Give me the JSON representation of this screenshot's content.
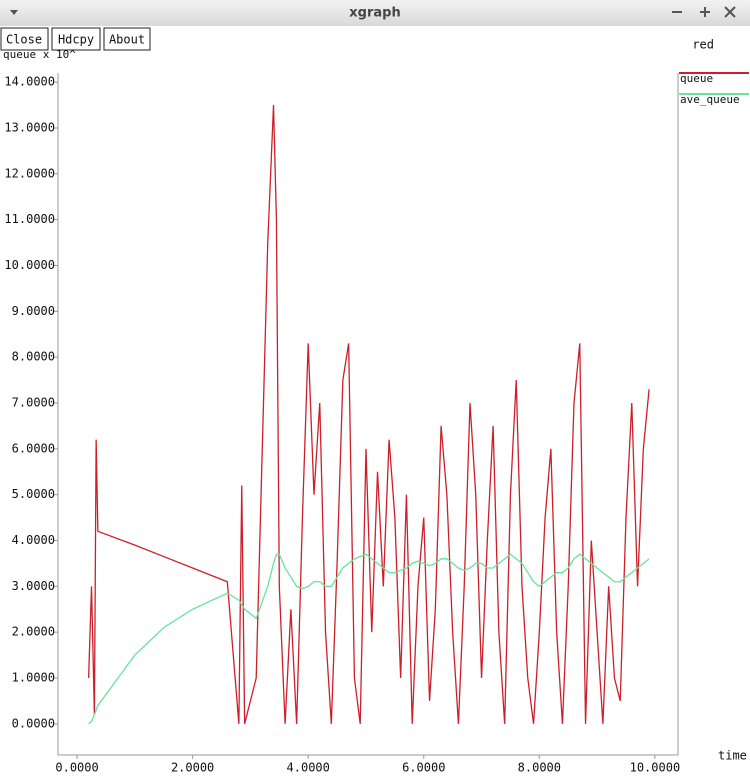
{
  "window": {
    "title": "xgraph",
    "buttons": [
      "Close",
      "Hdcpy",
      "About"
    ],
    "status": "red"
  },
  "chart_data": {
    "type": "line",
    "y_label": "queue x 10^",
    "x_label": "time",
    "x": [
      0.2,
      0.25,
      0.3,
      0.33,
      0.36,
      1.0,
      1.5,
      2.0,
      2.6,
      2.8,
      2.85,
      2.9,
      3.1,
      3.3,
      3.4,
      3.45,
      3.5,
      3.6,
      3.7,
      3.8,
      3.9,
      4.0,
      4.1,
      4.2,
      4.3,
      4.4,
      4.5,
      4.6,
      4.7,
      4.8,
      4.9,
      5.0,
      5.1,
      5.2,
      5.3,
      5.4,
      5.5,
      5.6,
      5.7,
      5.8,
      5.9,
      6.0,
      6.1,
      6.2,
      6.3,
      6.4,
      6.5,
      6.6,
      6.7,
      6.8,
      6.9,
      7.0,
      7.1,
      7.2,
      7.3,
      7.4,
      7.5,
      7.6,
      7.7,
      7.8,
      7.9,
      8.0,
      8.1,
      8.2,
      8.3,
      8.4,
      8.5,
      8.6,
      8.7,
      8.8,
      8.9,
      9.0,
      9.1,
      9.2,
      9.3,
      9.4,
      9.5,
      9.6,
      9.7,
      9.8,
      9.9
    ],
    "series": [
      {
        "name": "queue",
        "color": "#cc1f2a",
        "values": [
          1.0,
          3.0,
          0.2,
          6.2,
          4.2,
          3.9,
          3.65,
          3.4,
          3.1,
          0,
          5.2,
          0,
          1.0,
          10.5,
          13.5,
          11,
          3,
          0,
          2.5,
          0,
          4.5,
          8.3,
          5,
          7,
          2,
          0,
          3.5,
          7.5,
          8.3,
          1,
          0,
          6,
          2,
          5.5,
          3,
          6.2,
          4.5,
          1,
          5,
          0,
          3,
          4.5,
          0.5,
          2.5,
          6.5,
          5,
          2,
          0,
          3,
          7,
          5,
          1,
          4,
          6.5,
          2,
          0,
          5,
          7.5,
          3,
          1,
          0,
          2,
          4.5,
          6,
          2,
          0,
          3,
          7,
          8.3,
          0,
          4,
          2,
          0,
          3,
          1,
          0.5,
          4.5,
          7,
          3,
          6,
          7.3
        ]
      },
      {
        "name": "ave_queue",
        "color": "#66e39a",
        "values": [
          0,
          0.05,
          0.2,
          0.3,
          0.4,
          1.5,
          2.1,
          2.5,
          2.85,
          2.7,
          2.6,
          2.5,
          2.3,
          3.0,
          3.5,
          3.7,
          3.7,
          3.4,
          3.2,
          3.0,
          2.95,
          3.0,
          3.1,
          3.1,
          3.0,
          3.0,
          3.2,
          3.4,
          3.5,
          3.6,
          3.65,
          3.7,
          3.6,
          3.5,
          3.4,
          3.3,
          3.3,
          3.35,
          3.4,
          3.5,
          3.55,
          3.5,
          3.45,
          3.5,
          3.6,
          3.6,
          3.5,
          3.4,
          3.35,
          3.4,
          3.5,
          3.5,
          3.4,
          3.4,
          3.5,
          3.6,
          3.7,
          3.6,
          3.5,
          3.3,
          3.1,
          3.0,
          3.1,
          3.2,
          3.3,
          3.3,
          3.4,
          3.6,
          3.7,
          3.6,
          3.5,
          3.4,
          3.3,
          3.2,
          3.1,
          3.1,
          3.2,
          3.3,
          3.4,
          3.5,
          3.6
        ]
      }
    ],
    "xlim": [
      -0.33,
      10.4
    ],
    "ylim": [
      -0.68,
      14.2
    ],
    "xticks": [
      {
        "value": 0,
        "label": "0.0000"
      },
      {
        "value": 2,
        "label": "2.0000"
      },
      {
        "value": 4,
        "label": "4.0000"
      },
      {
        "value": 6,
        "label": "6.0000"
      },
      {
        "value": 8,
        "label": "8.0000"
      },
      {
        "value": 10,
        "label": "10.0000"
      }
    ],
    "yticks": [
      {
        "value": 0,
        "label": "0.0000"
      },
      {
        "value": 1,
        "label": "1.0000"
      },
      {
        "value": 2,
        "label": "2.0000"
      },
      {
        "value": 3,
        "label": "3.0000"
      },
      {
        "value": 4,
        "label": "4.0000"
      },
      {
        "value": 5,
        "label": "5.0000"
      },
      {
        "value": 6,
        "label": "6.0000"
      },
      {
        "value": 7,
        "label": "7.0000"
      },
      {
        "value": 8,
        "label": "8.0000"
      },
      {
        "value": 9,
        "label": "9.0000"
      },
      {
        "value": 10,
        "label": "10.0000"
      },
      {
        "value": 11,
        "label": "11.0000"
      },
      {
        "value": 12,
        "label": "12.0000"
      },
      {
        "value": 13,
        "label": "13.0000"
      },
      {
        "value": 14,
        "label": "14.0000"
      }
    ]
  }
}
